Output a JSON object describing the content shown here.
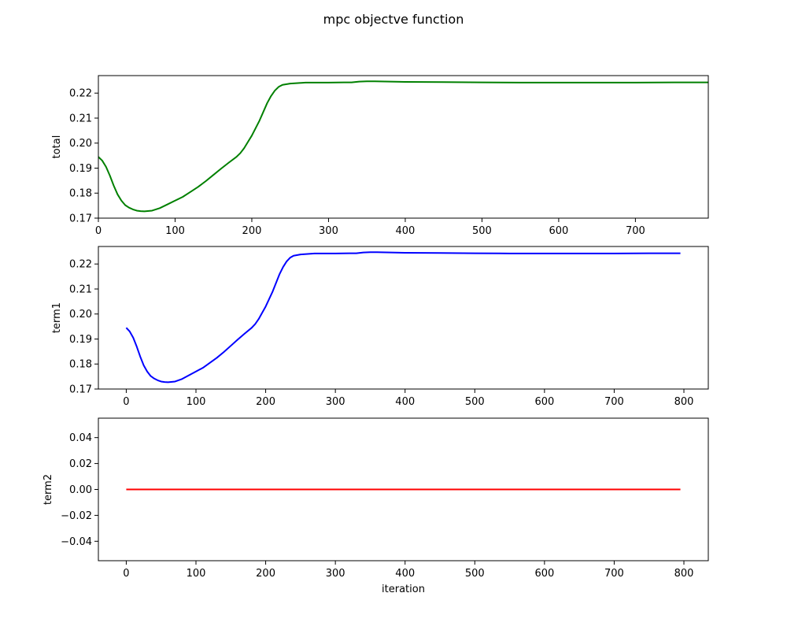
{
  "figure": {
    "suptitle": "mpc objectve function"
  },
  "chart_data": [
    {
      "type": "line",
      "ylabel": "total",
      "xlabel": "",
      "xlim": [
        0,
        795
      ],
      "ylim": [
        0.17,
        0.227
      ],
      "xticks": [
        0,
        100,
        200,
        300,
        400,
        500,
        600,
        700
      ],
      "xtick_labels": [
        "0",
        "100",
        "200",
        "300",
        "400",
        "500",
        "600",
        "700"
      ],
      "yticks": [
        0.17,
        0.18,
        0.19,
        0.2,
        0.21,
        0.22
      ],
      "ytick_labels": [
        "0.17",
        "0.18",
        "0.19",
        "0.20",
        "0.21",
        "0.22"
      ],
      "grid": false,
      "series": [
        {
          "color": "#008000",
          "x": [
            0,
            5,
            10,
            15,
            20,
            25,
            30,
            35,
            40,
            45,
            50,
            55,
            60,
            70,
            80,
            90,
            100,
            110,
            120,
            130,
            140,
            150,
            160,
            170,
            180,
            185,
            190,
            195,
            200,
            205,
            210,
            215,
            220,
            225,
            230,
            235,
            240,
            250,
            260,
            270,
            280,
            300,
            320,
            330,
            340,
            350,
            360,
            380,
            400,
            450,
            500,
            550,
            600,
            650,
            700,
            750,
            795
          ],
          "y": [
            0.1945,
            0.193,
            0.1905,
            0.187,
            0.183,
            0.1795,
            0.177,
            0.1752,
            0.1742,
            0.1735,
            0.173,
            0.1728,
            0.1727,
            0.173,
            0.174,
            0.1755,
            0.177,
            0.1785,
            0.1805,
            0.1825,
            0.1848,
            0.1873,
            0.1898,
            0.1922,
            0.1945,
            0.196,
            0.198,
            0.2005,
            0.203,
            0.206,
            0.209,
            0.2125,
            0.216,
            0.2188,
            0.221,
            0.2225,
            0.2233,
            0.2238,
            0.224,
            0.2242,
            0.2242,
            0.2242,
            0.2243,
            0.2243,
            0.2246,
            0.2247,
            0.2247,
            0.2246,
            0.2245,
            0.2244,
            0.2243,
            0.2242,
            0.2242,
            0.2242,
            0.2242,
            0.2243,
            0.2243
          ]
        }
      ]
    },
    {
      "type": "line",
      "ylabel": "term1",
      "xlabel": "",
      "xlim": [
        -40,
        835
      ],
      "ylim": [
        0.17,
        0.227
      ],
      "xticks": [
        0,
        100,
        200,
        300,
        400,
        500,
        600,
        700,
        800
      ],
      "xtick_labels": [
        "0",
        "100",
        "200",
        "300",
        "400",
        "500",
        "600",
        "700",
        "800"
      ],
      "yticks": [
        0.17,
        0.18,
        0.19,
        0.2,
        0.21,
        0.22
      ],
      "ytick_labels": [
        "0.17",
        "0.18",
        "0.19",
        "0.20",
        "0.21",
        "0.22"
      ],
      "grid": false,
      "series": [
        {
          "color": "#0000ff",
          "x": [
            0,
            5,
            10,
            15,
            20,
            25,
            30,
            35,
            40,
            45,
            50,
            55,
            60,
            70,
            80,
            90,
            100,
            110,
            120,
            130,
            140,
            150,
            160,
            170,
            180,
            185,
            190,
            195,
            200,
            205,
            210,
            215,
            220,
            225,
            230,
            235,
            240,
            250,
            260,
            270,
            280,
            300,
            320,
            330,
            340,
            350,
            360,
            380,
            400,
            450,
            500,
            550,
            600,
            650,
            700,
            750,
            795
          ],
          "y": [
            0.1945,
            0.193,
            0.1905,
            0.187,
            0.183,
            0.1795,
            0.177,
            0.1752,
            0.1742,
            0.1735,
            0.173,
            0.1728,
            0.1727,
            0.173,
            0.174,
            0.1755,
            0.177,
            0.1785,
            0.1805,
            0.1825,
            0.1848,
            0.1873,
            0.1898,
            0.1922,
            0.1945,
            0.196,
            0.198,
            0.2005,
            0.203,
            0.206,
            0.209,
            0.2125,
            0.216,
            0.2188,
            0.221,
            0.2225,
            0.2233,
            0.2238,
            0.224,
            0.2242,
            0.2242,
            0.2242,
            0.2243,
            0.2243,
            0.2246,
            0.2247,
            0.2247,
            0.2246,
            0.2245,
            0.2244,
            0.2243,
            0.2242,
            0.2242,
            0.2242,
            0.2242,
            0.2243,
            0.2243
          ]
        }
      ]
    },
    {
      "type": "line",
      "ylabel": "term2",
      "xlabel": "iteration",
      "xlim": [
        -40,
        835
      ],
      "ylim": [
        -0.055,
        0.055
      ],
      "xticks": [
        0,
        100,
        200,
        300,
        400,
        500,
        600,
        700,
        800
      ],
      "xtick_labels": [
        "0",
        "100",
        "200",
        "300",
        "400",
        "500",
        "600",
        "700",
        "800"
      ],
      "yticks": [
        -0.04,
        -0.02,
        0.0,
        0.02,
        0.04
      ],
      "ytick_labels": [
        "−0.04",
        "−0.02",
        "0.00",
        "0.02",
        "0.04"
      ],
      "grid": false,
      "series": [
        {
          "color": "#ff0000",
          "x": [
            0,
            795
          ],
          "y": [
            0.0,
            0.0
          ]
        }
      ]
    }
  ]
}
